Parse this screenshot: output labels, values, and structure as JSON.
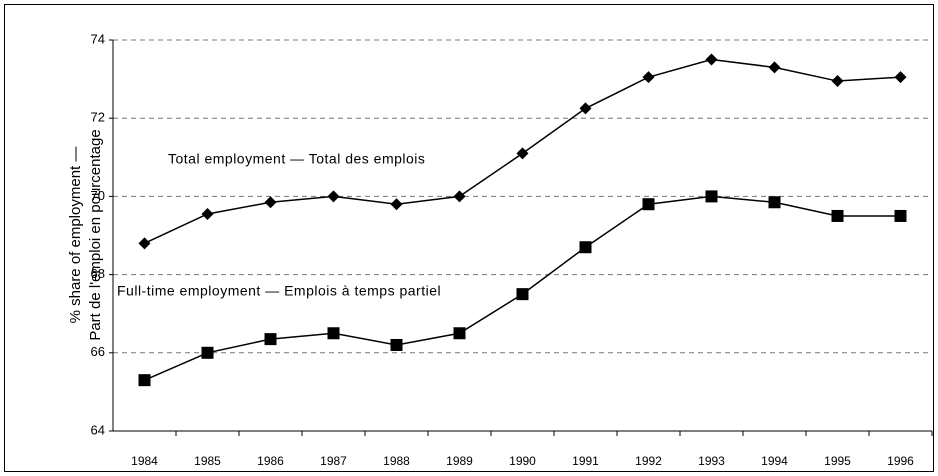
{
  "chart_data": {
    "type": "line",
    "y_label_lines": [
      "% share of employment —",
      "Part de l'emploi en pourcentage"
    ],
    "categories": [
      "1984",
      "1985",
      "1986",
      "1987",
      "1988",
      "1989",
      "1990",
      "1991",
      "1992",
      "1993",
      "1994",
      "1995",
      "1996"
    ],
    "series": [
      {
        "name": "Total employment — Total des emplois",
        "color": "#000000",
        "marker": "diamond",
        "values": [
          68.8,
          69.55,
          69.85,
          70.0,
          69.8,
          70.0,
          71.1,
          72.25,
          73.05,
          73.5,
          73.3,
          72.95,
          73.05
        ]
      },
      {
        "name": "Full-time employment — Emplois à temps partiel",
        "color": "#000000",
        "marker": "square",
        "values": [
          65.3,
          66.0,
          66.35,
          66.5,
          66.2,
          66.5,
          67.5,
          68.7,
          69.8,
          70.0,
          69.85,
          69.5,
          69.5
        ]
      }
    ],
    "ylim": [
      64,
      74
    ],
    "yticks": [
      64,
      66,
      68,
      70,
      72,
      74
    ],
    "grid": true
  }
}
